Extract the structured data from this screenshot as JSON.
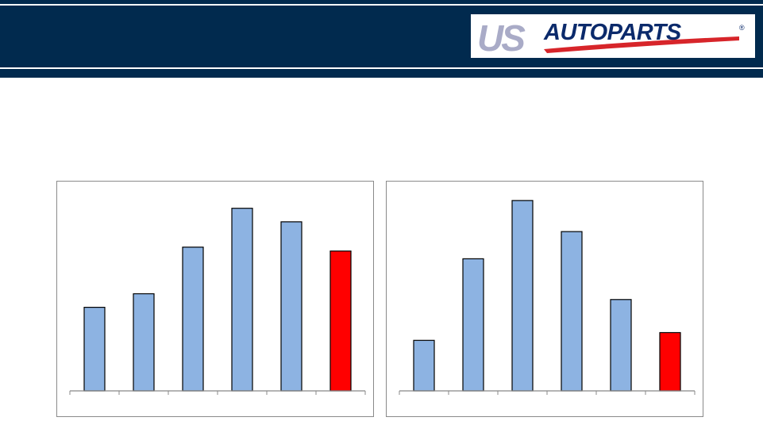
{
  "logo": {
    "text_us": "US",
    "text_autoparts": "AUTOPARTS",
    "registered_mark": "®"
  },
  "colors": {
    "header_bg": "#012A4E",
    "bar_default": "#8DB3E2",
    "bar_highlight": "#FF0000",
    "bar_stroke": "#000000",
    "logo_us": "#A9ABC7",
    "logo_autoparts": "#0B2A6B",
    "logo_swoosh": "#D7252A"
  },
  "chart_data": [
    {
      "type": "bar",
      "values": [
        43,
        50,
        74,
        94,
        87,
        72
      ],
      "highlight_index": 5,
      "ylim": [
        0,
        100
      ]
    },
    {
      "type": "bar",
      "values": [
        26,
        68,
        98,
        82,
        47,
        30
      ],
      "highlight_index": 5,
      "ylim": [
        0,
        100
      ]
    }
  ]
}
